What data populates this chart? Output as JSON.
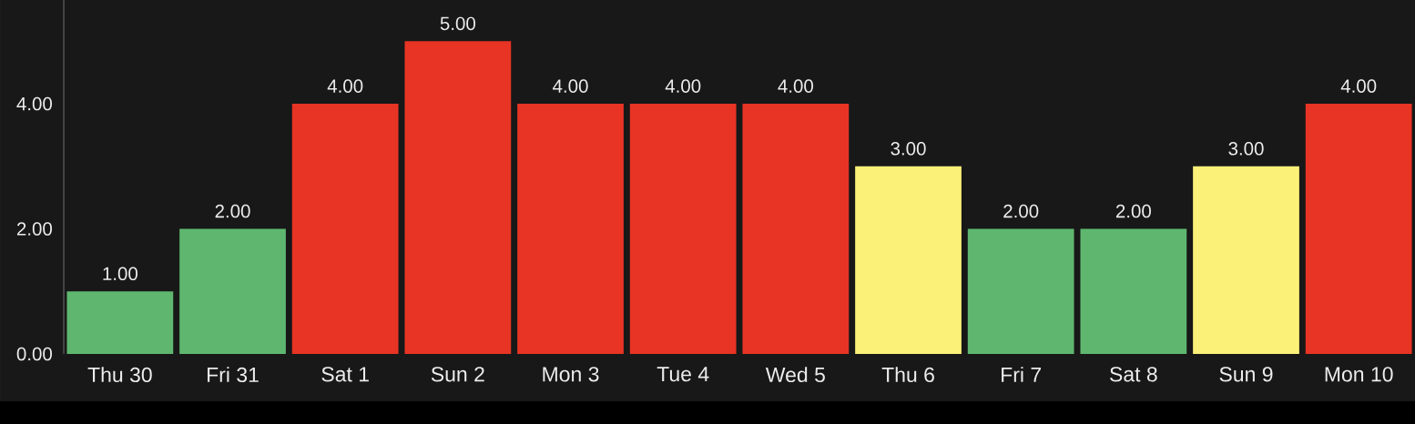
{
  "chart_data": {
    "type": "bar",
    "categories": [
      "Thu 30",
      "Fri 31",
      "Sat 1",
      "Sun 2",
      "Mon 3",
      "Tue 4",
      "Wed 5",
      "Thu 6",
      "Fri 7",
      "Sat 8",
      "Sun 9",
      "Mon 10"
    ],
    "values": [
      1,
      2,
      4,
      5,
      4,
      4,
      4,
      3,
      2,
      2,
      3,
      4
    ],
    "colors": [
      "#5fb76f",
      "#5fb76f",
      "#e83424",
      "#e83424",
      "#e83424",
      "#e83424",
      "#e83424",
      "#fcf178",
      "#5fb76f",
      "#5fb76f",
      "#fcf178",
      "#e83424"
    ],
    "value_labels": [
      "1.00",
      "2.00",
      "4.00",
      "5.00",
      "4.00",
      "4.00",
      "4.00",
      "3.00",
      "2.00",
      "2.00",
      "3.00",
      "4.00"
    ],
    "ylim": [
      0,
      5.66
    ],
    "yticks": [
      {
        "value": 0,
        "label": "0.00"
      },
      {
        "value": 2,
        "label": "2.00"
      },
      {
        "value": 4,
        "label": "4.00"
      }
    ]
  }
}
